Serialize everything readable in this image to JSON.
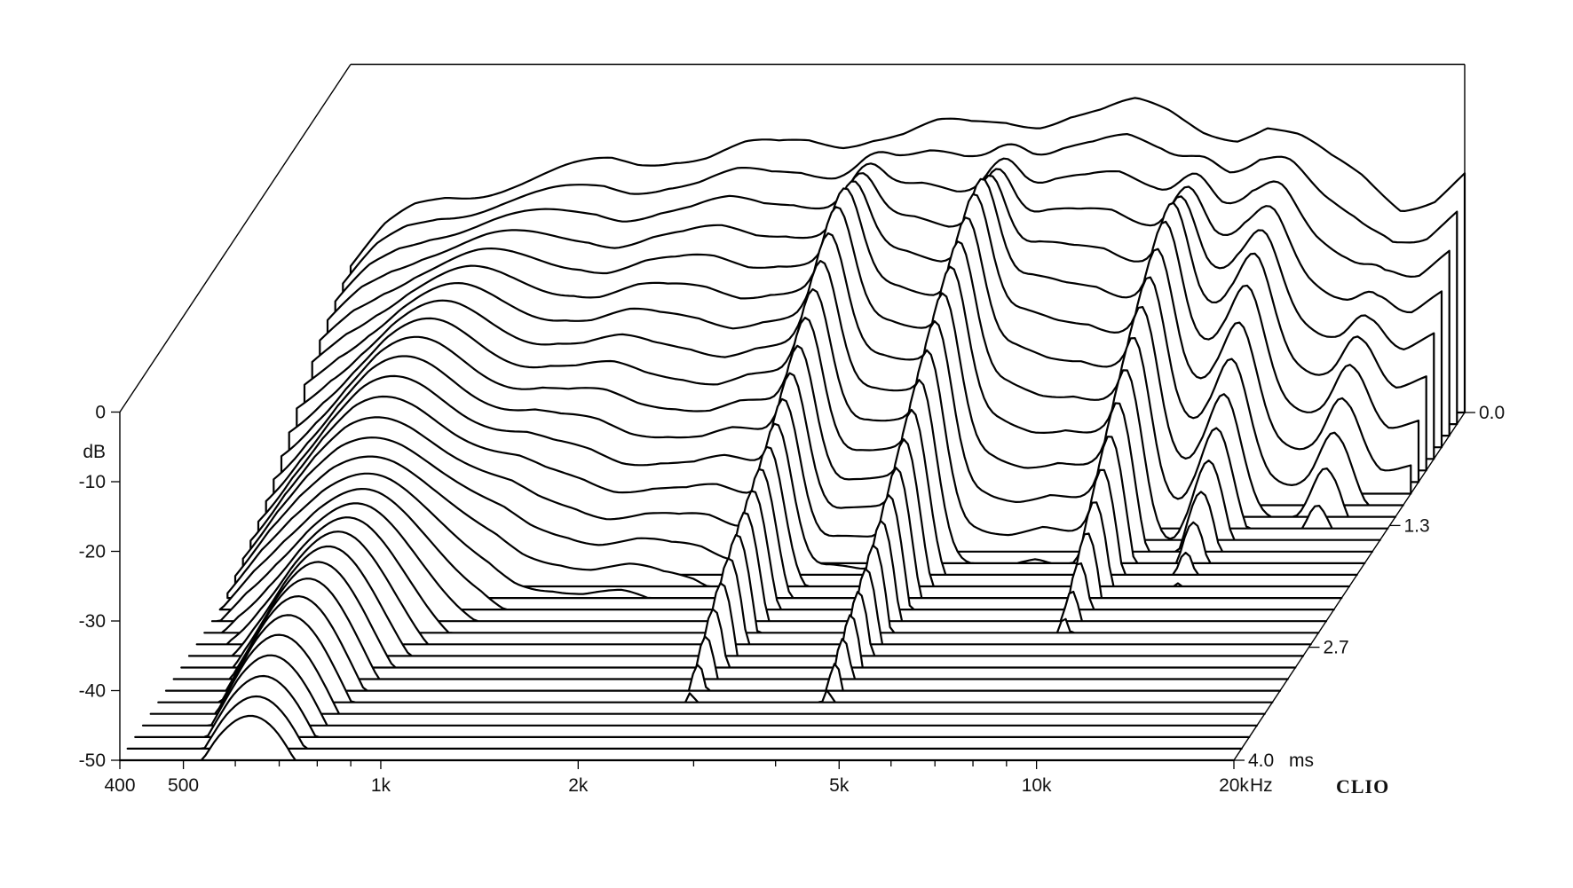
{
  "chart_data": {
    "type": "waterfall",
    "x_ticks": [
      {
        "value": 400,
        "label": "400"
      },
      {
        "value": 500,
        "label": "500"
      },
      {
        "value": 1000,
        "label": "1k"
      },
      {
        "value": 2000,
        "label": "2k"
      },
      {
        "value": 5000,
        "label": "5k"
      },
      {
        "value": 10000,
        "label": "10k"
      },
      {
        "value": 20000,
        "label": "20k"
      }
    ],
    "x_minor_ticks": [
      600,
      700,
      800,
      900,
      3000,
      4000,
      6000,
      7000,
      8000,
      9000
    ],
    "x_unit": "Hz",
    "xlim": [
      400,
      20000
    ],
    "y_ticks": [
      {
        "value": 0,
        "label": "0"
      },
      {
        "value": -10,
        "label": "-10"
      },
      {
        "value": -20,
        "label": "-20"
      },
      {
        "value": -30,
        "label": "-30"
      },
      {
        "value": -40,
        "label": "-40"
      },
      {
        "value": -50,
        "label": "-50"
      }
    ],
    "y_unit": "dB",
    "ylim": [
      -50,
      0
    ],
    "z_ticks": [
      {
        "value": 0.0,
        "label": "0.0"
      },
      {
        "value": 1.3,
        "label": "1.3"
      },
      {
        "value": 2.7,
        "label": "2.7"
      },
      {
        "value": 4.0,
        "label": "4.0"
      }
    ],
    "z_unit": "ms",
    "zlim": [
      0,
      4.0
    ],
    "slice_count": 31,
    "profile_freqs": [
      400,
      450,
      500,
      560,
      630,
      700,
      800,
      900,
      1000,
      1100,
      1250,
      1400,
      1600,
      1800,
      2000,
      2250,
      2500,
      2800,
      3150,
      3550,
      4000,
      4500,
      5000,
      5600,
      6300,
      7100,
      8000,
      9000,
      10000,
      11200,
      12500,
      14000,
      16000,
      18000,
      20000
    ],
    "first_slice_db": [
      -29,
      -24,
      -21,
      -19,
      -18,
      -17,
      -16,
      -15,
      -14,
      -14,
      -13,
      -13,
      -12,
      -12,
      -11,
      -11,
      -10,
      -10,
      -9,
      -9,
      -8,
      -8,
      -7,
      -7,
      -6,
      -7,
      -9,
      -10,
      -9,
      -11,
      -14,
      -16,
      -20,
      -19,
      -16
    ],
    "resonances": [
      {
        "freq": 2600,
        "gain_db": 10
      },
      {
        "freq": 4200,
        "gain_db": 12
      },
      {
        "freq": 8200,
        "gain_db": 12
      },
      {
        "freq": 11000,
        "gain_db": 8
      },
      {
        "freq": 15800,
        "gain_db": 7
      }
    ],
    "brand": "CLIO"
  }
}
